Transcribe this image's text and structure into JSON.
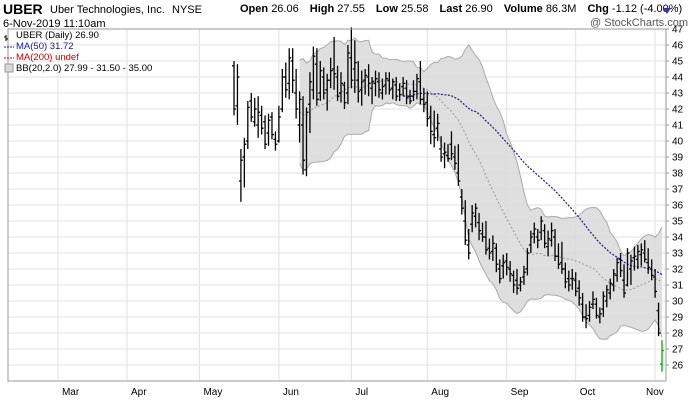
{
  "header": {
    "ticker": "UBER",
    "company": "Uber Technologies, Inc.",
    "exchange": "NYSE",
    "datetime": "6-Nov-2019 11:10am",
    "watermark": "@ StockCharts.com",
    "stats": {
      "open_label": "Open",
      "open": "26.06",
      "high_label": "High",
      "high": "27.55",
      "low_label": "Low",
      "low": "25.58",
      "last_label": "Last",
      "last": "26.90",
      "volume_label": "Volume",
      "volume": "86.3M",
      "chg_label": "Chg",
      "chg": "-1.12 (-4.00%)"
    }
  },
  "legend": {
    "price": "UBER (Daily) 26.90",
    "ma50": "MA(50) 31.72",
    "ma200": "MA(200) undef",
    "bb": "BB(20,2.0) 27.99 - 31.50 - 35.00"
  },
  "colors": {
    "ma50": "#1a1a8c",
    "ma200": "#cc0000",
    "band_fill": "#d9d9d9",
    "band_line": "#aaaaaa",
    "mid_line": "#999999",
    "grid": "#e2e2e2",
    "bar": "#000000",
    "last_bar": "#00aa00"
  },
  "chart_data": {
    "type": "ohlc",
    "y_axis": {
      "min": 25,
      "max": 47,
      "ticks": [
        26,
        27,
        28,
        29,
        30,
        31,
        32,
        33,
        34,
        35,
        36,
        37,
        38,
        39,
        40,
        41,
        42,
        43,
        44,
        45,
        46,
        47
      ]
    },
    "x_axis": {
      "months": [
        "Mar",
        "Apr",
        "May",
        "Jun",
        "Jul",
        "Aug",
        "Sep",
        "Oct",
        "Nov"
      ],
      "month_start_index": [
        -51,
        -31,
        -10,
        13,
        34,
        56,
        79,
        99,
        122
      ]
    },
    "bars": [
      {
        "o": 44.7,
        "h": 45.0,
        "l": 41.6,
        "c": 42.0
      },
      {
        "o": 42.2,
        "h": 44.8,
        "l": 41.0,
        "c": 44.0
      },
      {
        "o": 37.5,
        "h": 39.5,
        "l": 36.2,
        "c": 38.8
      },
      {
        "o": 39.0,
        "h": 40.2,
        "l": 37.1,
        "c": 39.8
      },
      {
        "o": 40.0,
        "h": 42.5,
        "l": 39.5,
        "c": 42.1
      },
      {
        "o": 42.5,
        "h": 43.0,
        "l": 41.2,
        "c": 41.5
      },
      {
        "o": 41.2,
        "h": 42.7,
        "l": 40.9,
        "c": 42.0
      },
      {
        "o": 41.0,
        "h": 42.8,
        "l": 40.2,
        "c": 41.8
      },
      {
        "o": 41.6,
        "h": 42.2,
        "l": 40.4,
        "c": 40.8
      },
      {
        "o": 41.2,
        "h": 41.6,
        "l": 39.5,
        "c": 39.8
      },
      {
        "o": 40.5,
        "h": 41.7,
        "l": 39.7,
        "c": 41.3
      },
      {
        "o": 41.5,
        "h": 41.8,
        "l": 40.1,
        "c": 40.4
      },
      {
        "o": 40.1,
        "h": 40.6,
        "l": 39.4,
        "c": 39.8
      },
      {
        "o": 40.0,
        "h": 42.2,
        "l": 39.9,
        "c": 41.5
      },
      {
        "o": 42.0,
        "h": 44.5,
        "l": 41.8,
        "c": 44.0
      },
      {
        "o": 44.0,
        "h": 44.9,
        "l": 42.7,
        "c": 43.2
      },
      {
        "o": 43.6,
        "h": 45.8,
        "l": 42.6,
        "c": 45.2
      },
      {
        "o": 45.0,
        "h": 45.8,
        "l": 43.0,
        "c": 43.8
      },
      {
        "o": 43.0,
        "h": 44.5,
        "l": 41.4,
        "c": 42.0
      },
      {
        "o": 41.0,
        "h": 43.1,
        "l": 39.9,
        "c": 42.6
      },
      {
        "o": 41.0,
        "h": 42.8,
        "l": 37.9,
        "c": 38.8
      },
      {
        "o": 38.2,
        "h": 42.1,
        "l": 37.8,
        "c": 41.8
      },
      {
        "o": 42.3,
        "h": 44.3,
        "l": 40.5,
        "c": 43.7
      },
      {
        "o": 43.2,
        "h": 45.9,
        "l": 42.6,
        "c": 45.3
      },
      {
        "o": 44.8,
        "h": 45.8,
        "l": 42.2,
        "c": 42.6
      },
      {
        "o": 43.0,
        "h": 45.0,
        "l": 42.5,
        "c": 44.4
      },
      {
        "o": 44.0,
        "h": 44.6,
        "l": 42.6,
        "c": 43.0
      },
      {
        "o": 43.2,
        "h": 44.2,
        "l": 41.9,
        "c": 43.8
      },
      {
        "o": 43.8,
        "h": 45.2,
        "l": 43.3,
        "c": 44.4
      },
      {
        "o": 44.5,
        "h": 46.5,
        "l": 43.2,
        "c": 44.2
      },
      {
        "o": 44.0,
        "h": 44.7,
        "l": 42.5,
        "c": 42.8
      },
      {
        "o": 43.0,
        "h": 44.3,
        "l": 42.4,
        "c": 43.6
      },
      {
        "o": 43.5,
        "h": 43.7,
        "l": 42.0,
        "c": 42.4
      },
      {
        "o": 43.0,
        "h": 46.0,
        "l": 42.3,
        "c": 45.5
      },
      {
        "o": 45.2,
        "h": 47.1,
        "l": 43.3,
        "c": 43.8
      },
      {
        "o": 44.5,
        "h": 46.3,
        "l": 43.0,
        "c": 44.9
      },
      {
        "o": 43.8,
        "h": 45.0,
        "l": 42.4,
        "c": 43.1
      },
      {
        "o": 43.2,
        "h": 44.4,
        "l": 42.2,
        "c": 43.7
      },
      {
        "o": 43.8,
        "h": 44.5,
        "l": 42.9,
        "c": 44.1
      },
      {
        "o": 44.0,
        "h": 44.8,
        "l": 42.8,
        "c": 43.6
      },
      {
        "o": 43.3,
        "h": 44.0,
        "l": 42.3,
        "c": 43.7
      },
      {
        "o": 43.6,
        "h": 44.4,
        "l": 42.8,
        "c": 43.9
      },
      {
        "o": 43.7,
        "h": 44.3,
        "l": 42.7,
        "c": 43.2
      },
      {
        "o": 43.0,
        "h": 43.9,
        "l": 42.6,
        "c": 43.4
      },
      {
        "o": 43.5,
        "h": 44.3,
        "l": 42.9,
        "c": 43.9
      },
      {
        "o": 43.8,
        "h": 44.3,
        "l": 42.9,
        "c": 43.2
      },
      {
        "o": 43.3,
        "h": 43.9,
        "l": 42.6,
        "c": 43.7
      },
      {
        "o": 43.5,
        "h": 44.0,
        "l": 42.5,
        "c": 42.8
      },
      {
        "o": 43.2,
        "h": 43.6,
        "l": 42.5,
        "c": 42.9
      },
      {
        "o": 43.4,
        "h": 44.0,
        "l": 42.8,
        "c": 43.6
      },
      {
        "o": 43.3,
        "h": 43.8,
        "l": 42.3,
        "c": 42.7
      },
      {
        "o": 42.8,
        "h": 43.2,
        "l": 42.3,
        "c": 42.5
      },
      {
        "o": 42.8,
        "h": 43.8,
        "l": 42.5,
        "c": 43.1
      },
      {
        "o": 43.1,
        "h": 44.2,
        "l": 42.6,
        "c": 43.9
      },
      {
        "o": 43.7,
        "h": 45.0,
        "l": 42.3,
        "c": 42.6
      },
      {
        "o": 42.6,
        "h": 43.3,
        "l": 41.8,
        "c": 42.3
      },
      {
        "o": 42.4,
        "h": 43.1,
        "l": 40.9,
        "c": 41.4
      },
      {
        "o": 41.5,
        "h": 42.2,
        "l": 39.8,
        "c": 40.6
      },
      {
        "o": 40.4,
        "h": 41.9,
        "l": 39.6,
        "c": 40.2
      },
      {
        "o": 40.8,
        "h": 41.7,
        "l": 40.0,
        "c": 41.1
      },
      {
        "o": 39.5,
        "h": 40.3,
        "l": 38.7,
        "c": 39.0
      },
      {
        "o": 39.2,
        "h": 39.9,
        "l": 38.3,
        "c": 39.3
      },
      {
        "o": 39.1,
        "h": 39.8,
        "l": 38.7,
        "c": 38.9
      },
      {
        "o": 39.8,
        "h": 40.6,
        "l": 38.8,
        "c": 39.2
      },
      {
        "o": 39.0,
        "h": 39.7,
        "l": 38.2,
        "c": 38.6
      },
      {
        "o": 38.0,
        "h": 39.8,
        "l": 37.2,
        "c": 37.5
      },
      {
        "o": 36.5,
        "h": 37.0,
        "l": 35.4,
        "c": 35.8
      },
      {
        "o": 35.0,
        "h": 36.3,
        "l": 33.5,
        "c": 33.8
      },
      {
        "o": 33.5,
        "h": 34.5,
        "l": 32.6,
        "c": 33.0
      },
      {
        "o": 34.8,
        "h": 36.0,
        "l": 34.3,
        "c": 35.5
      },
      {
        "o": 35.3,
        "h": 36.1,
        "l": 34.6,
        "c": 35.8
      },
      {
        "o": 34.9,
        "h": 35.5,
        "l": 33.8,
        "c": 34.4
      },
      {
        "o": 34.2,
        "h": 34.9,
        "l": 33.7,
        "c": 34.0
      },
      {
        "o": 34.0,
        "h": 35.0,
        "l": 32.9,
        "c": 33.2
      },
      {
        "o": 33.3,
        "h": 33.9,
        "l": 32.6,
        "c": 33.0
      },
      {
        "o": 33.1,
        "h": 34.1,
        "l": 32.5,
        "c": 33.6
      },
      {
        "o": 33.3,
        "h": 33.6,
        "l": 31.8,
        "c": 32.3
      },
      {
        "o": 32.0,
        "h": 32.6,
        "l": 31.1,
        "c": 31.4
      },
      {
        "o": 32.2,
        "h": 32.9,
        "l": 31.4,
        "c": 32.4
      },
      {
        "o": 32.5,
        "h": 33.0,
        "l": 31.6,
        "c": 32.1
      },
      {
        "o": 32.0,
        "h": 32.5,
        "l": 31.2,
        "c": 31.7
      },
      {
        "o": 31.6,
        "h": 31.9,
        "l": 30.5,
        "c": 31.0
      },
      {
        "o": 31.3,
        "h": 32.0,
        "l": 30.4,
        "c": 30.8
      },
      {
        "o": 31.0,
        "h": 31.5,
        "l": 30.6,
        "c": 31.2
      },
      {
        "o": 31.5,
        "h": 32.2,
        "l": 31.0,
        "c": 31.8
      },
      {
        "o": 32.0,
        "h": 33.3,
        "l": 31.6,
        "c": 33.0
      },
      {
        "o": 33.5,
        "h": 34.4,
        "l": 33.0,
        "c": 34.0
      },
      {
        "o": 34.2,
        "h": 34.9,
        "l": 33.6,
        "c": 34.5
      },
      {
        "o": 34.0,
        "h": 34.5,
        "l": 33.3,
        "c": 33.8
      },
      {
        "o": 34.3,
        "h": 35.3,
        "l": 33.8,
        "c": 35.0
      },
      {
        "o": 34.4,
        "h": 34.8,
        "l": 33.3,
        "c": 33.6
      },
      {
        "o": 33.4,
        "h": 34.4,
        "l": 32.8,
        "c": 33.9
      },
      {
        "o": 33.8,
        "h": 34.9,
        "l": 33.4,
        "c": 34.4
      },
      {
        "o": 34.0,
        "h": 34.5,
        "l": 32.5,
        "c": 32.8
      },
      {
        "o": 32.8,
        "h": 33.6,
        "l": 32.0,
        "c": 32.3
      },
      {
        "o": 32.4,
        "h": 33.7,
        "l": 31.7,
        "c": 32.0
      },
      {
        "o": 32.0,
        "h": 32.4,
        "l": 30.8,
        "c": 31.2
      },
      {
        "o": 31.4,
        "h": 31.9,
        "l": 30.6,
        "c": 31.0
      },
      {
        "o": 31.4,
        "h": 32.0,
        "l": 30.7,
        "c": 31.4
      },
      {
        "o": 31.3,
        "h": 31.8,
        "l": 30.3,
        "c": 30.6
      },
      {
        "o": 30.8,
        "h": 31.3,
        "l": 29.7,
        "c": 30.2
      },
      {
        "o": 29.8,
        "h": 30.5,
        "l": 28.7,
        "c": 29.0
      },
      {
        "o": 29.0,
        "h": 29.8,
        "l": 28.3,
        "c": 28.9
      },
      {
        "o": 29.1,
        "h": 30.0,
        "l": 28.7,
        "c": 29.6
      },
      {
        "o": 29.8,
        "h": 30.6,
        "l": 29.5,
        "c": 30.1
      },
      {
        "o": 29.8,
        "h": 30.2,
        "l": 28.9,
        "c": 29.1
      },
      {
        "o": 29.0,
        "h": 29.6,
        "l": 28.6,
        "c": 29.2
      },
      {
        "o": 29.5,
        "h": 30.6,
        "l": 29.0,
        "c": 30.3
      },
      {
        "o": 30.0,
        "h": 31.0,
        "l": 29.6,
        "c": 30.7
      },
      {
        "o": 30.5,
        "h": 31.4,
        "l": 30.1,
        "c": 31.1
      },
      {
        "o": 31.0,
        "h": 32.0,
        "l": 30.6,
        "c": 31.7
      },
      {
        "o": 31.6,
        "h": 32.7,
        "l": 31.2,
        "c": 32.4
      },
      {
        "o": 32.6,
        "h": 33.0,
        "l": 31.5,
        "c": 31.9
      },
      {
        "o": 31.3,
        "h": 32.3,
        "l": 30.2,
        "c": 30.5
      },
      {
        "o": 31.0,
        "h": 33.3,
        "l": 30.9,
        "c": 33.0
      },
      {
        "o": 32.0,
        "h": 32.9,
        "l": 31.0,
        "c": 32.5
      },
      {
        "o": 32.7,
        "h": 33.4,
        "l": 31.9,
        "c": 32.8
      },
      {
        "o": 32.6,
        "h": 33.5,
        "l": 32.0,
        "c": 33.1
      },
      {
        "o": 32.9,
        "h": 33.6,
        "l": 32.2,
        "c": 33.2
      },
      {
        "o": 33.0,
        "h": 33.8,
        "l": 32.4,
        "c": 32.6
      },
      {
        "o": 32.4,
        "h": 33.3,
        "l": 31.7,
        "c": 32.1
      },
      {
        "o": 32.0,
        "h": 32.6,
        "l": 31.3,
        "c": 31.6
      },
      {
        "o": 31.5,
        "h": 32.0,
        "l": 30.2,
        "c": 30.6
      },
      {
        "o": 29.4,
        "h": 29.9,
        "l": 27.8,
        "c": 28.0
      },
      {
        "o": 26.06,
        "h": 27.55,
        "l": 25.58,
        "c": 26.9,
        "last": true
      }
    ],
    "bb_upper": [],
    "bb_lower": [],
    "ma50": []
  }
}
